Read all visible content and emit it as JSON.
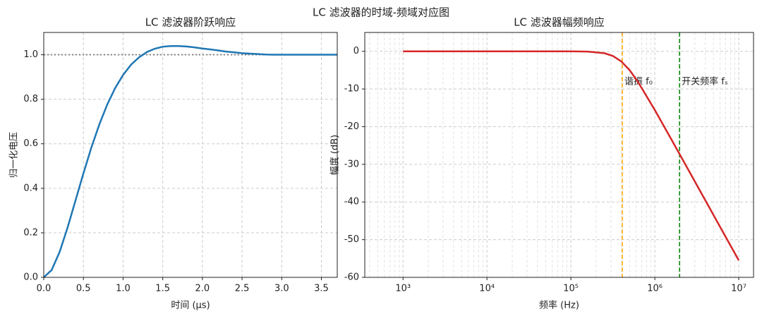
{
  "title": "LC 滤波器的时域-频域对应图",
  "chart_data": [
    {
      "type": "line",
      "title": "LC 滤波器阶跃响应",
      "xlabel": "时间 (μs)",
      "ylabel": "归一化电压",
      "x": [
        0,
        0.1,
        0.2,
        0.3,
        0.4,
        0.5,
        0.6,
        0.7,
        0.8,
        0.9,
        1.0,
        1.1,
        1.2,
        1.3,
        1.4,
        1.5,
        1.6,
        1.7,
        1.8,
        1.9,
        2.0,
        2.1,
        2.2,
        2.3,
        2.4,
        2.5,
        2.6,
        2.7,
        2.8,
        2.9,
        3.0,
        3.1,
        3.2,
        3.3,
        3.4,
        3.5,
        3.6,
        3.7
      ],
      "values": [
        0,
        0.033,
        0.114,
        0.223,
        0.345,
        0.467,
        0.583,
        0.686,
        0.776,
        0.85,
        0.909,
        0.955,
        0.988,
        1.012,
        1.027,
        1.036,
        1.039,
        1.039,
        1.037,
        1.033,
        1.028,
        1.024,
        1.019,
        1.014,
        1.011,
        1.007,
        1.005,
        1.003,
        1.001,
        1.0,
        1.0,
        1.0,
        1.0,
        1.0,
        1.0,
        1.0,
        1.0,
        1.0
      ],
      "color": "#1f77b4",
      "xlim": [
        0,
        3.7
      ],
      "ylim": [
        0,
        1.1
      ],
      "xticks": [
        {
          "value": 0,
          "label": "0.0"
        },
        0.5,
        {
          "value": 1,
          "label": "1.0"
        },
        1.5,
        {
          "value": 2,
          "label": "2.0"
        },
        2.5,
        {
          "value": 3,
          "label": "3.0"
        },
        3.5
      ],
      "yticks": [
        {
          "value": 0,
          "label": "0.0"
        },
        0.2,
        0.4,
        0.6,
        0.8,
        {
          "value": 1,
          "label": "1.0"
        }
      ],
      "grid": true,
      "hline": {
        "y": 1,
        "color": "#808080"
      }
    },
    {
      "type": "line",
      "title": "LC 滤波器幅频响应",
      "xlabel": "频率 (Hz)",
      "ylabel": "幅度 (dB)",
      "xscale": "log",
      "x": [
        1000,
        3162,
        10000,
        31623,
        100000,
        158489,
        251189,
        316228,
        398107,
        501187,
        630957,
        1000000,
        1584893,
        2511886,
        3981072,
        6309573,
        10000000
      ],
      "values": [
        0,
        0,
        0,
        0,
        -0.01,
        -0.07,
        -0.51,
        -1.24,
        -2.67,
        -5.01,
        -8.14,
        -15.58,
        -23.49,
        -31.48,
        -39.49,
        -47.49,
        -55.49
      ],
      "color": "#d62728",
      "xlim": [
        350,
        15000000
      ],
      "ylim": [
        -60,
        5
      ],
      "xticks": [
        {
          "value": 1000,
          "label": "10³"
        },
        {
          "value": 10000,
          "label": "10⁴"
        },
        {
          "value": 100000,
          "label": "10⁵"
        },
        {
          "value": 1000000,
          "label": "10⁶"
        },
        {
          "value": 10000000,
          "label": "10⁷"
        }
      ],
      "yticks": [
        -60,
        -50,
        -40,
        -30,
        -20,
        -10,
        0
      ],
      "grid": true,
      "vlines": [
        {
          "x": 410000,
          "label": "谐振 f₀",
          "color": "#ffa500"
        },
        {
          "x": 1970000,
          "label": "开关频率 fₛ",
          "color": "#008000"
        }
      ]
    }
  ]
}
